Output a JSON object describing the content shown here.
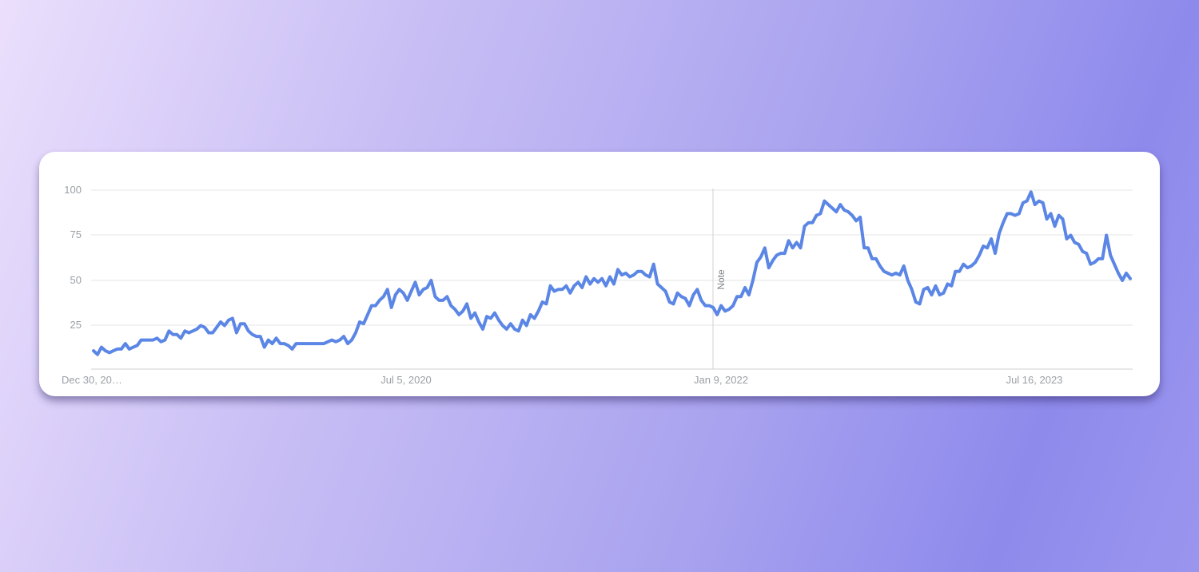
{
  "chart_data": {
    "type": "line",
    "title": "",
    "xlabel": "",
    "ylabel": "",
    "x_tick_labels": [
      "Dec 30, 20…",
      "Jul 5, 2020",
      "Jan 9, 2022",
      "Jul 16, 2023"
    ],
    "y_tick_labels": [
      "100",
      "75",
      "50",
      "25"
    ],
    "yticks": [
      100,
      75,
      50,
      25
    ],
    "ylim": [
      0,
      100
    ],
    "annotation": {
      "text": "Note",
      "x": "Jan 9, 2022"
    },
    "grid": true,
    "line_color": "#5b86e5",
    "series": [
      {
        "values": [
          11,
          9,
          13,
          11,
          10,
          11,
          12,
          12,
          15,
          12,
          13,
          14,
          17,
          17,
          17,
          17,
          18,
          16,
          17,
          22,
          20,
          20,
          18,
          22,
          21,
          22,
          23,
          25,
          24,
          21,
          21,
          24,
          27,
          25,
          28,
          29,
          21,
          26,
          26,
          22,
          20,
          19,
          19,
          13,
          17,
          15,
          18,
          15,
          15,
          14,
          12,
          15,
          15,
          15,
          15,
          15,
          15,
          15,
          15,
          16,
          17,
          16,
          17,
          19,
          15,
          17,
          21,
          27,
          26,
          31,
          36,
          36,
          39,
          41,
          45,
          35,
          42,
          45,
          43,
          39,
          44,
          49,
          42,
          45,
          46,
          50,
          41,
          39,
          39,
          41,
          36,
          34,
          31,
          33,
          37,
          29,
          32,
          27,
          23,
          30,
          29,
          32,
          28,
          25,
          23,
          26,
          23,
          22,
          28,
          25,
          31,
          29,
          33,
          38,
          37,
          47,
          44,
          45,
          45,
          47,
          43,
          47,
          49,
          46,
          52,
          48,
          51,
          49,
          51,
          47,
          52,
          48,
          56,
          53,
          54,
          52,
          53,
          55,
          55,
          53,
          52,
          59,
          48,
          46,
          44,
          38,
          37,
          43,
          41,
          40,
          36,
          42,
          45,
          39,
          36,
          36,
          35,
          31,
          36,
          33,
          34,
          36,
          41,
          41,
          46,
          42,
          50,
          60,
          63,
          68,
          57,
          61,
          64,
          65,
          65,
          72,
          68,
          71,
          68,
          80,
          82,
          82,
          86,
          87,
          94,
          92,
          90,
          88,
          92,
          89,
          88,
          86,
          83,
          85,
          68,
          68,
          62,
          62,
          58,
          55,
          54,
          53,
          54,
          53,
          58,
          50,
          45,
          38,
          37,
          45,
          46,
          42,
          47,
          42,
          43,
          48,
          47,
          55,
          55,
          59,
          57,
          58,
          60,
          64,
          69,
          68,
          73,
          65,
          76,
          82,
          87,
          87,
          86,
          87,
          93,
          94,
          99,
          92,
          94,
          93,
          84,
          87,
          80,
          86,
          84,
          73,
          75,
          71,
          70,
          66,
          65,
          59,
          60,
          62,
          62,
          75,
          64,
          59,
          54,
          50,
          54,
          51
        ]
      }
    ]
  }
}
